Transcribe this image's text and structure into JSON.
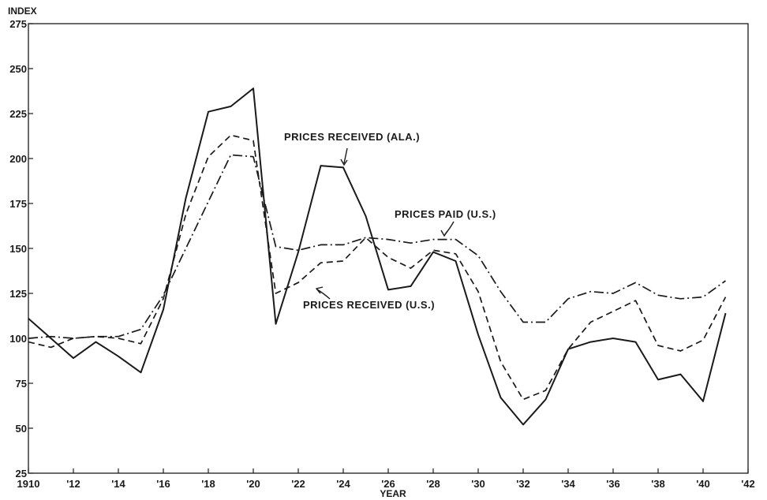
{
  "chart_data": {
    "type": "line",
    "title": "",
    "xlabel": "YEAR",
    "ylabel": "INDEX",
    "ylim": [
      25,
      275
    ],
    "xlim": [
      1910,
      1942
    ],
    "yticks": [
      25,
      50,
      75,
      100,
      125,
      150,
      175,
      200,
      225,
      250,
      275
    ],
    "xticks": [
      {
        "value": 1910,
        "label": "1910"
      },
      {
        "value": 1912,
        "label": "'12"
      },
      {
        "value": 1914,
        "label": "'14"
      },
      {
        "value": 1916,
        "label": "'16"
      },
      {
        "value": 1918,
        "label": "'18"
      },
      {
        "value": 1920,
        "label": "'20"
      },
      {
        "value": 1922,
        "label": "'22"
      },
      {
        "value": 1924,
        "label": "'24"
      },
      {
        "value": 1926,
        "label": "'26"
      },
      {
        "value": 1928,
        "label": "'28"
      },
      {
        "value": 1930,
        "label": "'30"
      },
      {
        "value": 1932,
        "label": "'32"
      },
      {
        "value": 1934,
        "label": "'34"
      },
      {
        "value": 1936,
        "label": "'36"
      },
      {
        "value": 1938,
        "label": "'38"
      },
      {
        "value": 1940,
        "label": "'40"
      },
      {
        "value": 1942,
        "label": "'42"
      }
    ],
    "grid": false,
    "x": [
      1910,
      1911,
      1912,
      1913,
      1914,
      1915,
      1916,
      1917,
      1918,
      1919,
      1920,
      1921,
      1922,
      1923,
      1924,
      1925,
      1926,
      1927,
      1928,
      1929,
      1930,
      1931,
      1932,
      1933,
      1934,
      1935,
      1936,
      1937,
      1938,
      1939,
      1940,
      1941
    ],
    "series": [
      {
        "name": "PRICES RECEIVED (ALA.)",
        "style": "solid",
        "values": [
          111,
          100,
          89,
          98,
          90,
          81,
          116,
          178,
          226,
          229,
          239,
          108,
          148,
          196,
          195,
          168,
          127,
          129,
          148,
          143,
          102,
          67,
          52,
          66,
          94,
          98,
          100,
          98,
          77,
          80,
          65,
          114
        ]
      },
      {
        "name": "PRICES RECEIVED (U.S.)",
        "style": "dashed",
        "values": [
          98,
          95,
          100,
          101,
          100,
          97,
          122,
          169,
          201,
          213,
          210,
          125,
          131,
          142,
          143,
          156,
          145,
          139,
          149,
          147,
          126,
          87,
          66,
          71,
          94,
          109,
          115,
          121,
          96,
          93,
          99,
          123
        ]
      },
      {
        "name": "PRICES PAID (U.S.)",
        "style": "dashdot",
        "values": [
          100,
          101,
          100,
          101,
          101,
          105,
          124,
          150,
          176,
          202,
          201,
          151,
          149,
          152,
          152,
          156,
          155,
          153,
          155,
          155,
          146,
          126,
          109,
          109,
          122,
          126,
          125,
          131,
          124,
          122,
          123,
          132
        ]
      }
    ],
    "annotations": [
      {
        "text": "PRICES RECEIVED (ALA.)",
        "series": 0
      },
      {
        "text": "PRICES PAID (U.S.)",
        "series": 2
      },
      {
        "text": "PRICES RECEIVED (U.S.)",
        "series": 1
      }
    ],
    "colors": {
      "ink": "#1a1a1a",
      "background": "#ffffff"
    }
  }
}
